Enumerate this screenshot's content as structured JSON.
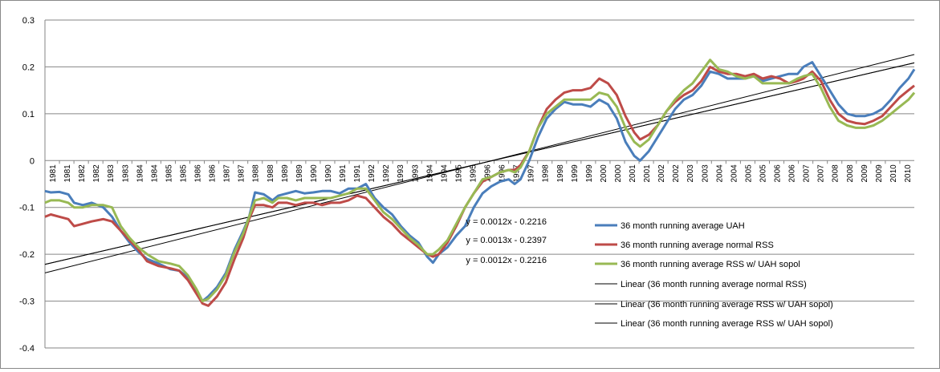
{
  "chart_data": {
    "type": "line",
    "title": "",
    "xlabel": "",
    "ylabel": "",
    "xlim": [
      1981.0,
      2010.8
    ],
    "ylim": [
      -0.4,
      0.3
    ],
    "grid": true,
    "legend_placement": "center",
    "yticks": [
      "-0.4",
      "-0.3",
      "-0.2",
      "-0.1",
      "0",
      "0.1",
      "0.2",
      "0.3"
    ],
    "xtick_labels": [
      "1981",
      "1981",
      "1982",
      "1982",
      "1983",
      "1983",
      "1984",
      "1984",
      "1985",
      "1985",
      "1986",
      "1986",
      "1987",
      "1987",
      "1988",
      "1988",
      "1989",
      "1989",
      "1990",
      "1990",
      "1991",
      "1991",
      "1992",
      "1992",
      "1993",
      "1993",
      "1994",
      "1994",
      "1995",
      "1995",
      "1996",
      "1996",
      "1997",
      "1997",
      "1998",
      "1998",
      "1999",
      "1999",
      "2000",
      "2000",
      "2001",
      "2001",
      "2002",
      "2002",
      "2003",
      "2003",
      "2004",
      "2004",
      "2005",
      "2005",
      "2006",
      "2006",
      "2007",
      "2007",
      "2008",
      "2008",
      "2009",
      "2009",
      "2010",
      "2010"
    ],
    "series": [
      {
        "name": "36 month running average UAH",
        "color": "#4A7EBB",
        "x": [
          1981.0,
          1981.2,
          1981.5,
          1981.8,
          1982.0,
          1982.3,
          1982.6,
          1983.0,
          1983.3,
          1983.6,
          1983.9,
          1984.2,
          1984.5,
          1984.9,
          1985.3,
          1985.6,
          1985.9,
          1986.2,
          1986.4,
          1986.6,
          1986.9,
          1987.2,
          1987.5,
          1987.8,
          1988.0,
          1988.2,
          1988.5,
          1988.8,
          1989.0,
          1989.3,
          1989.6,
          1989.9,
          1990.2,
          1990.5,
          1990.8,
          1991.1,
          1991.4,
          1991.7,
          1992.0,
          1992.3,
          1992.6,
          1992.9,
          1993.2,
          1993.5,
          1993.8,
          1994.1,
          1994.3,
          1994.5,
          1994.8,
          1995.1,
          1995.4,
          1995.7,
          1996.0,
          1996.3,
          1996.6,
          1996.9,
          1997.1,
          1997.3,
          1997.6,
          1997.9,
          1998.2,
          1998.5,
          1998.8,
          1999.1,
          1999.4,
          1999.7,
          2000.0,
          2000.3,
          2000.6,
          2000.9,
          2001.2,
          2001.4,
          2001.7,
          2002.0,
          2002.3,
          2002.6,
          2002.9,
          2003.2,
          2003.5,
          2003.8,
          2004.1,
          2004.4,
          2004.7,
          2005.0,
          2005.3,
          2005.6,
          2005.9,
          2006.2,
          2006.5,
          2006.8,
          2007.0,
          2007.3,
          2007.6,
          2007.9,
          2008.2,
          2008.5,
          2008.8,
          2009.1,
          2009.4,
          2009.7,
          2010.0,
          2010.3,
          2010.6,
          2010.8
        ],
        "values": [
          -0.065,
          -0.068,
          -0.067,
          -0.072,
          -0.09,
          -0.095,
          -0.09,
          -0.1,
          -0.12,
          -0.15,
          -0.175,
          -0.195,
          -0.21,
          -0.22,
          -0.232,
          -0.235,
          -0.25,
          -0.28,
          -0.3,
          -0.29,
          -0.27,
          -0.24,
          -0.19,
          -0.15,
          -0.12,
          -0.068,
          -0.072,
          -0.085,
          -0.075,
          -0.07,
          -0.065,
          -0.07,
          -0.068,
          -0.065,
          -0.065,
          -0.07,
          -0.06,
          -0.06,
          -0.05,
          -0.08,
          -0.1,
          -0.115,
          -0.14,
          -0.16,
          -0.175,
          -0.205,
          -0.218,
          -0.2,
          -0.185,
          -0.16,
          -0.14,
          -0.1,
          -0.07,
          -0.055,
          -0.045,
          -0.04,
          -0.05,
          -0.04,
          0.0,
          0.05,
          0.09,
          0.11,
          0.125,
          0.12,
          0.12,
          0.115,
          0.13,
          0.12,
          0.09,
          0.04,
          0.01,
          0.0,
          0.02,
          0.05,
          0.08,
          0.11,
          0.13,
          0.14,
          0.16,
          0.19,
          0.185,
          0.175,
          0.175,
          0.175,
          0.18,
          0.17,
          0.175,
          0.18,
          0.185,
          0.185,
          0.2,
          0.21,
          0.18,
          0.15,
          0.12,
          0.1,
          0.095,
          0.095,
          0.1,
          0.11,
          0.13,
          0.155,
          0.175,
          0.195
        ]
      },
      {
        "name": "36 month running average normal RSS",
        "color": "#BE4B48",
        "x": [
          1981.0,
          1981.2,
          1981.5,
          1981.8,
          1982.0,
          1982.3,
          1982.6,
          1983.0,
          1983.3,
          1983.6,
          1983.9,
          1984.2,
          1984.5,
          1984.9,
          1985.3,
          1985.6,
          1985.9,
          1986.2,
          1986.4,
          1986.6,
          1986.9,
          1987.2,
          1987.5,
          1987.8,
          1988.0,
          1988.2,
          1988.5,
          1988.8,
          1989.0,
          1989.3,
          1989.6,
          1989.9,
          1990.2,
          1990.5,
          1990.8,
          1991.1,
          1991.4,
          1991.7,
          1992.0,
          1992.3,
          1992.6,
          1992.9,
          1993.2,
          1993.5,
          1993.8,
          1994.1,
          1994.3,
          1994.5,
          1994.8,
          1995.1,
          1995.4,
          1995.7,
          1996.0,
          1996.3,
          1996.6,
          1996.9,
          1997.1,
          1997.3,
          1997.6,
          1997.9,
          1998.2,
          1998.5,
          1998.8,
          1999.1,
          1999.4,
          1999.7,
          2000.0,
          2000.3,
          2000.6,
          2000.9,
          2001.2,
          2001.4,
          2001.7,
          2002.0,
          2002.3,
          2002.6,
          2002.9,
          2003.2,
          2003.5,
          2003.8,
          2004.1,
          2004.4,
          2004.7,
          2005.0,
          2005.3,
          2005.6,
          2005.9,
          2006.2,
          2006.5,
          2006.8,
          2007.0,
          2007.3,
          2007.6,
          2007.9,
          2008.2,
          2008.5,
          2008.8,
          2009.1,
          2009.4,
          2009.7,
          2010.0,
          2010.3,
          2010.6,
          2010.8
        ],
        "values": [
          -0.12,
          -0.115,
          -0.12,
          -0.125,
          -0.14,
          -0.135,
          -0.13,
          -0.125,
          -0.13,
          -0.15,
          -0.17,
          -0.19,
          -0.215,
          -0.225,
          -0.23,
          -0.235,
          -0.255,
          -0.285,
          -0.305,
          -0.31,
          -0.29,
          -0.26,
          -0.21,
          -0.165,
          -0.125,
          -0.095,
          -0.095,
          -0.1,
          -0.09,
          -0.09,
          -0.095,
          -0.09,
          -0.09,
          -0.095,
          -0.09,
          -0.09,
          -0.085,
          -0.075,
          -0.08,
          -0.1,
          -0.12,
          -0.135,
          -0.155,
          -0.17,
          -0.185,
          -0.2,
          -0.205,
          -0.2,
          -0.175,
          -0.14,
          -0.1,
          -0.07,
          -0.045,
          -0.035,
          -0.025,
          -0.02,
          -0.02,
          -0.01,
          0.02,
          0.07,
          0.11,
          0.13,
          0.145,
          0.15,
          0.15,
          0.155,
          0.175,
          0.165,
          0.14,
          0.095,
          0.06,
          0.045,
          0.055,
          0.075,
          0.105,
          0.125,
          0.14,
          0.15,
          0.17,
          0.2,
          0.19,
          0.185,
          0.185,
          0.18,
          0.185,
          0.175,
          0.18,
          0.175,
          0.165,
          0.17,
          0.175,
          0.19,
          0.17,
          0.13,
          0.1,
          0.085,
          0.08,
          0.078,
          0.085,
          0.095,
          0.115,
          0.135,
          0.15,
          0.16
        ]
      },
      {
        "name": "36 month running average RSS w/ UAH sopol",
        "color": "#98B954",
        "x": [
          1981.0,
          1981.2,
          1981.5,
          1981.8,
          1982.0,
          1982.3,
          1982.6,
          1983.0,
          1983.3,
          1983.6,
          1983.9,
          1984.2,
          1984.5,
          1984.9,
          1985.3,
          1985.6,
          1985.9,
          1986.2,
          1986.4,
          1986.6,
          1986.9,
          1987.2,
          1987.5,
          1987.8,
          1988.0,
          1988.2,
          1988.5,
          1988.8,
          1989.0,
          1989.3,
          1989.6,
          1989.9,
          1990.2,
          1990.5,
          1990.8,
          1991.1,
          1991.4,
          1991.7,
          1992.0,
          1992.3,
          1992.6,
          1992.9,
          1993.2,
          1993.5,
          1993.8,
          1994.1,
          1994.3,
          1994.5,
          1994.8,
          1995.1,
          1995.4,
          1995.7,
          1996.0,
          1996.3,
          1996.6,
          1996.9,
          1997.1,
          1997.3,
          1997.6,
          1997.9,
          1998.2,
          1998.5,
          1998.8,
          1999.1,
          1999.4,
          1999.7,
          2000.0,
          2000.3,
          2000.6,
          2000.9,
          2001.2,
          2001.4,
          2001.7,
          2002.0,
          2002.3,
          2002.6,
          2002.9,
          2003.2,
          2003.5,
          2003.8,
          2004.1,
          2004.4,
          2004.7,
          2005.0,
          2005.3,
          2005.6,
          2005.9,
          2006.2,
          2006.5,
          2006.8,
          2007.0,
          2007.3,
          2007.6,
          2007.9,
          2008.2,
          2008.5,
          2008.8,
          2009.1,
          2009.4,
          2009.7,
          2010.0,
          2010.3,
          2010.6,
          2010.8
        ],
        "values": [
          -0.09,
          -0.085,
          -0.085,
          -0.09,
          -0.1,
          -0.1,
          -0.095,
          -0.095,
          -0.1,
          -0.14,
          -0.165,
          -0.185,
          -0.2,
          -0.215,
          -0.22,
          -0.225,
          -0.245,
          -0.275,
          -0.3,
          -0.295,
          -0.275,
          -0.245,
          -0.195,
          -0.155,
          -0.12,
          -0.085,
          -0.08,
          -0.09,
          -0.08,
          -0.08,
          -0.085,
          -0.08,
          -0.08,
          -0.08,
          -0.08,
          -0.075,
          -0.07,
          -0.06,
          -0.06,
          -0.085,
          -0.11,
          -0.125,
          -0.145,
          -0.165,
          -0.18,
          -0.2,
          -0.2,
          -0.19,
          -0.17,
          -0.135,
          -0.1,
          -0.07,
          -0.04,
          -0.035,
          -0.025,
          -0.02,
          -0.025,
          -0.015,
          0.02,
          0.07,
          0.1,
          0.115,
          0.13,
          0.13,
          0.13,
          0.13,
          0.145,
          0.14,
          0.115,
          0.07,
          0.04,
          0.03,
          0.045,
          0.075,
          0.105,
          0.13,
          0.15,
          0.165,
          0.19,
          0.215,
          0.195,
          0.19,
          0.18,
          0.175,
          0.18,
          0.165,
          0.165,
          0.165,
          0.165,
          0.175,
          0.18,
          0.185,
          0.155,
          0.115,
          0.085,
          0.075,
          0.07,
          0.07,
          0.075,
          0.085,
          0.1,
          0.115,
          0.13,
          0.145
        ]
      }
    ],
    "trendlines": [
      {
        "name": "Linear (36 month running average normal RSS)",
        "color": "#000000",
        "slope": 0.0013,
        "intercept": -0.2397,
        "x_start": 1981.0,
        "x_end": 2010.8
      },
      {
        "name": "Linear (36 month running average RSS w/ UAH sopol)",
        "color": "#000000",
        "slope": 0.0012,
        "intercept": -0.2216,
        "x_start": 1981.0,
        "x_end": 2010.8
      },
      {
        "name": "Linear (36 month running average RSS w/ UAH sopol)",
        "color": "#000000",
        "slope": 0.0012,
        "intercept": -0.2216,
        "x_start": 1981.0,
        "x_end": 2010.8
      }
    ],
    "equations": [
      "y = 0.0012x - 0.2216",
      "y = 0.0013x - 0.2397",
      "y = 0.0012x - 0.2216"
    ],
    "legend": [
      "36 month running average UAH",
      "36 month running average normal RSS",
      "36 month running average RSS w/ UAH sopol",
      "Linear (36 month running average normal RSS)",
      "Linear (36 month running average RSS w/ UAH sopol)",
      "Linear (36 month running average RSS w/ UAH sopol)"
    ]
  }
}
